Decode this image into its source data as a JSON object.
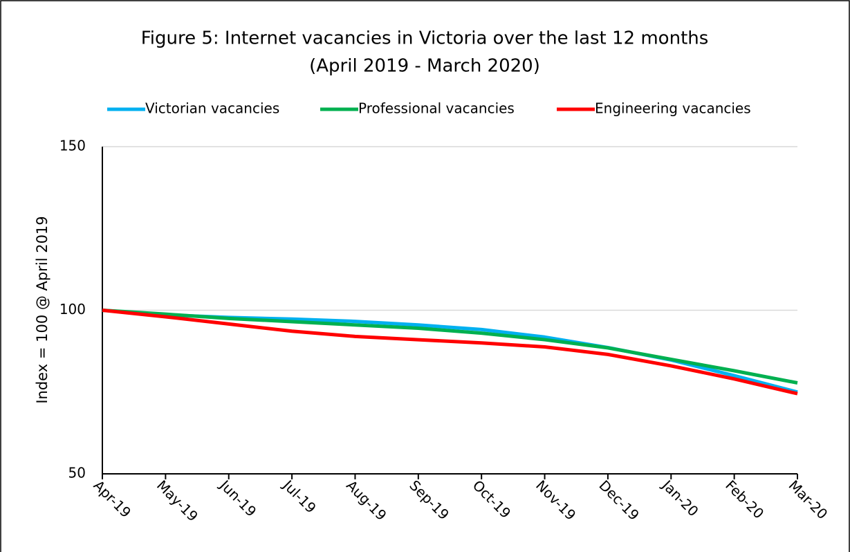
{
  "chart_data": {
    "type": "line",
    "title": "Figure 5: Internet vacancies in Victoria over the last 12 months",
    "subtitle": "(April 2019 - March 2020)",
    "y_label": "Index = 100 @ April 2019",
    "categories": [
      "Apr-19",
      "May-19",
      "Jun-19",
      "Jul-19",
      "Aug-19",
      "Sep-19",
      "Oct-19",
      "Nov-19",
      "Dec-19",
      "Jan-20",
      "Feb-20",
      "Mar-20"
    ],
    "series": [
      {
        "name": "Victorian vacancies",
        "color": "#00b0f0",
        "values": [
          100,
          98.6,
          97.8,
          97.3,
          96.6,
          95.5,
          94.1,
          91.8,
          88.6,
          84.8,
          80,
          75
        ]
      },
      {
        "name": "Professional vacancies",
        "color": "#00b050",
        "values": [
          100,
          98.8,
          97.5,
          96.5,
          95.5,
          94.5,
          93,
          91,
          88.5,
          85,
          81.5,
          77.8
        ]
      },
      {
        "name": "Engineering vacancies",
        "color": "#ff0000",
        "values": [
          100,
          98,
          95.8,
          93.6,
          92,
          91,
          90,
          88.8,
          86.5,
          83,
          79,
          74.5
        ]
      }
    ],
    "ylim": [
      50,
      150
    ],
    "yticks": [
      50,
      100,
      150
    ],
    "grid": true,
    "legend": "top"
  }
}
